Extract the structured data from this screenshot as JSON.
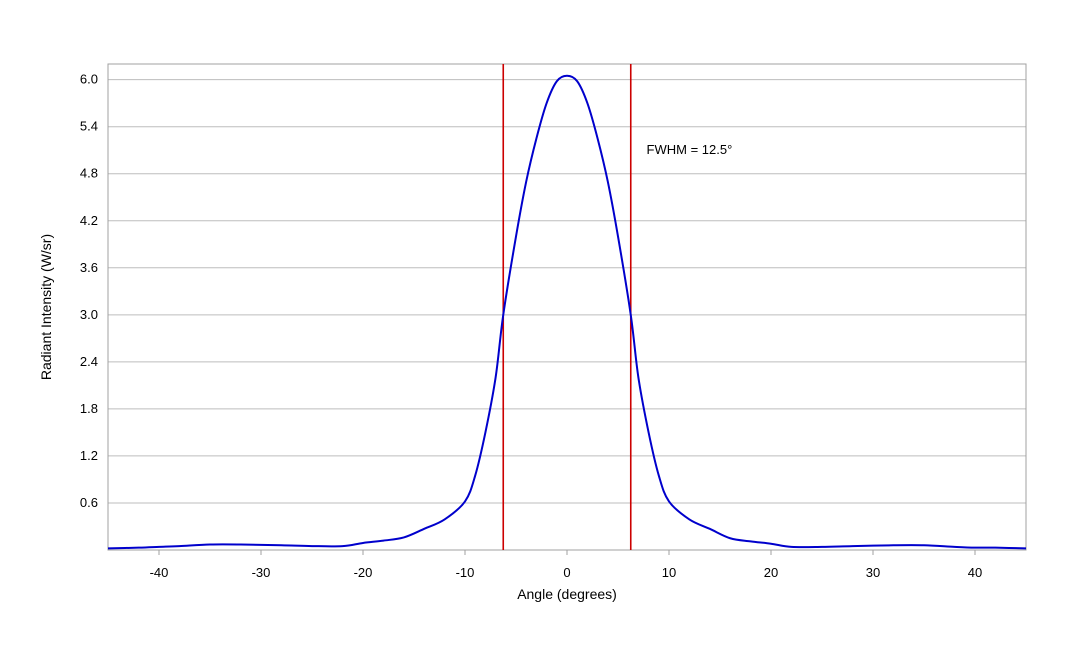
{
  "chart_data": {
    "type": "line",
    "title": "",
    "xlabel": "Angle (degrees)",
    "ylabel": "Radiant Intensity (W/sr)",
    "xlim": [
      -45,
      45
    ],
    "ylim": [
      0,
      6.2
    ],
    "xticks": [
      -40,
      -30,
      -20,
      -10,
      0,
      10,
      20,
      30,
      40
    ],
    "xtick_labels": [
      "-40",
      "-30",
      "-20",
      "-10",
      "0",
      "10",
      "20",
      "30",
      "40"
    ],
    "yticks": [
      0.6,
      1.2,
      1.8,
      2.4,
      3.0,
      3.6,
      4.2,
      4.8,
      5.4,
      6.0
    ],
    "ytick_labels": [
      "0.6",
      "1.2",
      "1.8",
      "2.4",
      "3.0",
      "3.6",
      "4.2",
      "4.8",
      "5.4",
      "6.0"
    ],
    "grid": true,
    "series": [
      {
        "color": "#0000cc",
        "x": [
          -45,
          -42,
          -40,
          -38,
          -35,
          -32,
          -28,
          -25,
          -22,
          -20,
          -18,
          -16,
          -14,
          -12,
          -10,
          -9,
          -8,
          -7,
          -6.25,
          -5,
          -4,
          -3,
          -2,
          -1,
          0,
          1,
          2,
          3,
          4,
          5,
          6.25,
          7,
          8,
          9,
          10,
          12,
          14,
          16,
          18,
          20,
          22,
          25,
          28,
          32,
          35,
          38,
          40,
          42,
          45
        ],
        "y": [
          0.02,
          0.03,
          0.04,
          0.05,
          0.07,
          0.07,
          0.06,
          0.05,
          0.05,
          0.09,
          0.12,
          0.16,
          0.27,
          0.39,
          0.62,
          0.95,
          1.5,
          2.2,
          3.0,
          4.0,
          4.7,
          5.25,
          5.7,
          5.98,
          6.05,
          5.98,
          5.7,
          5.25,
          4.7,
          4.0,
          3.0,
          2.2,
          1.5,
          0.95,
          0.62,
          0.39,
          0.27,
          0.15,
          0.11,
          0.08,
          0.04,
          0.04,
          0.05,
          0.06,
          0.06,
          0.04,
          0.03,
          0.03,
          0.02
        ]
      }
    ],
    "vlines": [
      {
        "x": -6.25,
        "color": "#cc0000"
      },
      {
        "x": 6.25,
        "color": "#cc0000"
      }
    ],
    "annotations": [
      {
        "text": "FWHM = 12.5°",
        "x": 7.8,
        "y": 5.05
      }
    ]
  }
}
